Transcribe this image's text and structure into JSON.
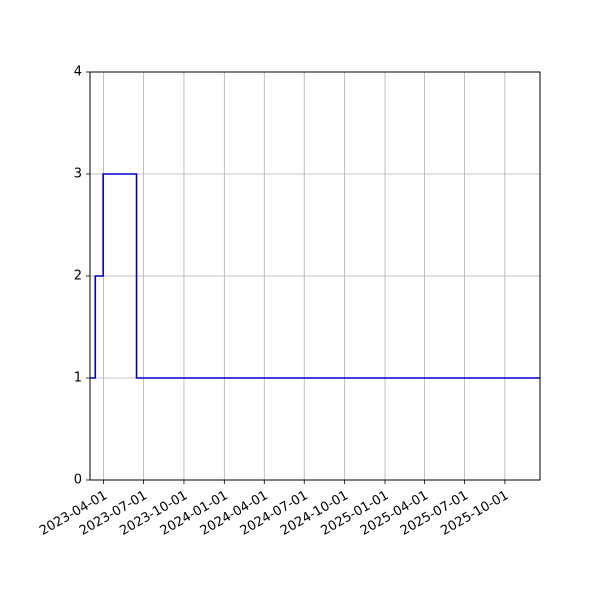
{
  "chart_data": {
    "type": "line",
    "step": true,
    "title": "",
    "xlabel": "",
    "ylabel": "",
    "x_is_date": true,
    "xlim": [
      "2023-03-01",
      "2025-12-20"
    ],
    "ylim": [
      0,
      4
    ],
    "grid": true,
    "legend": "none",
    "x_ticks": [
      "2023-04-01",
      "2023-07-01",
      "2023-10-01",
      "2024-01-01",
      "2024-04-01",
      "2024-07-01",
      "2024-10-01",
      "2025-01-01",
      "2025-04-01",
      "2025-07-01",
      "2025-10-01"
    ],
    "y_ticks": [
      0,
      1,
      2,
      3,
      4
    ],
    "series": [
      {
        "color": "#0000cc",
        "x": [
          "2023-03-01",
          "2023-03-03",
          "2023-03-13",
          "2023-03-31",
          "2023-06-15",
          "2025-12-20"
        ],
        "values": [
          1,
          1,
          2,
          3,
          1,
          1
        ]
      }
    ]
  }
}
